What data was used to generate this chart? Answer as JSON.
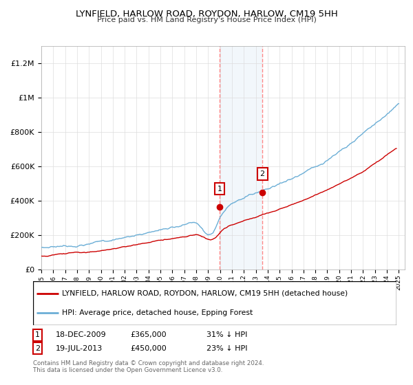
{
  "title": "LYNFIELD, HARLOW ROAD, ROYDON, HARLOW, CM19 5HH",
  "subtitle": "Price paid vs. HM Land Registry's House Price Index (HPI)",
  "xlim_start": 1995,
  "xlim_end": 2025.5,
  "ylim": [
    0,
    1300000
  ],
  "yticks": [
    0,
    200000,
    400000,
    600000,
    800000,
    1000000,
    1200000
  ],
  "ytick_labels": [
    "£0",
    "£200K",
    "£400K",
    "£600K",
    "£800K",
    "£1M",
    "£1.2M"
  ],
  "transaction1": {
    "date_num": 2009.96,
    "price": 365000,
    "label": "1",
    "date_str": "18-DEC-2009",
    "pct": "31% ↓ HPI"
  },
  "transaction2": {
    "date_num": 2013.55,
    "price": 450000,
    "label": "2",
    "date_str": "19-JUL-2013",
    "pct": "23% ↓ HPI"
  },
  "hpi_color": "#6baed6",
  "price_color": "#cc0000",
  "transaction_marker_color": "#cc0000",
  "shading_color": "#cce0f0",
  "dashed_line_color": "#ff8888",
  "legend_label_property": "LYNFIELD, HARLOW ROAD, ROYDON, HARLOW, CM19 5HH (detached house)",
  "legend_label_hpi": "HPI: Average price, detached house, Epping Forest",
  "footer1": "Contains HM Land Registry data © Crown copyright and database right 2024.",
  "footer2": "This data is licensed under the Open Government Licence v3.0.",
  "table_rows": [
    [
      "1",
      "18-DEC-2009",
      "£365,000",
      "31% ↓ HPI"
    ],
    [
      "2",
      "19-JUL-2013",
      "£450,000",
      "23% ↓ HPI"
    ]
  ]
}
